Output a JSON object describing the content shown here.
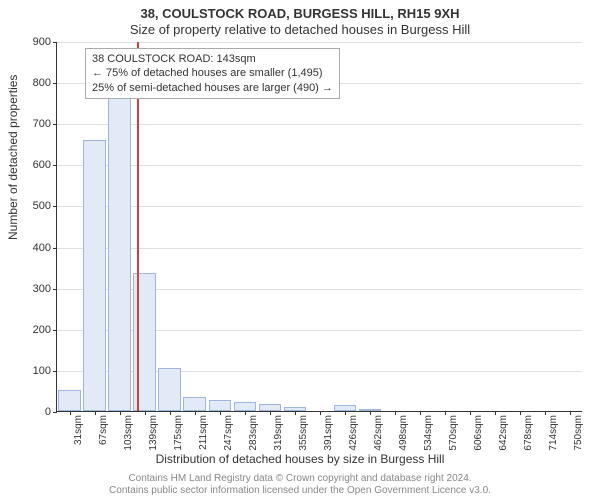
{
  "title1": "38, COULSTOCK ROAD, BURGESS HILL, RH15 9XH",
  "title2": "Size of property relative to detached houses in Burgess Hill",
  "ylabel": "Number of detached properties",
  "xlabel": "Distribution of detached houses by size in Burgess Hill",
  "footer_line1": "Contains HM Land Registry data © Crown copyright and database right 2024.",
  "footer_line2": "Contains public sector information licensed under the Open Government Licence v3.0.",
  "chart": {
    "type": "bar",
    "ymax": 900,
    "ytick_step": 100,
    "bar_fill": "#e3eaf7",
    "bar_stroke": "#9fb5dd",
    "grid_color": "#e0e0e0",
    "axis_color": "#333333",
    "marker_color": "#d04040",
    "categories": [
      "31sqm",
      "67sqm",
      "103sqm",
      "139sqm",
      "175sqm",
      "211sqm",
      "247sqm",
      "283sqm",
      "319sqm",
      "355sqm",
      "391sqm",
      "426sqm",
      "462sqm",
      "498sqm",
      "534sqm",
      "570sqm",
      "606sqm",
      "642sqm",
      "678sqm",
      "714sqm",
      "750sqm"
    ],
    "values": [
      50,
      660,
      820,
      335,
      105,
      35,
      28,
      22,
      16,
      10,
      0,
      14,
      6,
      0,
      0,
      0,
      0,
      0,
      0,
      0,
      0
    ],
    "marker_index_after": 3,
    "annotation": {
      "line1": "38 COULSTOCK ROAD: 143sqm",
      "line2": "← 75% of detached houses are smaller (1,495)",
      "line3": "25% of semi-detached houses are larger (490) →"
    }
  }
}
